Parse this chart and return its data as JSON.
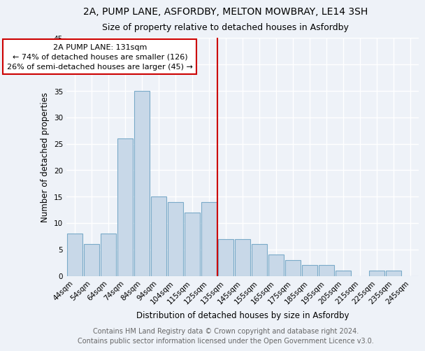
{
  "title1": "2A, PUMP LANE, ASFORDBY, MELTON MOWBRAY, LE14 3SH",
  "title2": "Size of property relative to detached houses in Asfordby",
  "xlabel": "Distribution of detached houses by size in Asfordby",
  "ylabel": "Number of detached properties",
  "footnote": "Contains HM Land Registry data © Crown copyright and database right 2024.\nContains public sector information licensed under the Open Government Licence v3.0.",
  "bin_labels": [
    "44sqm",
    "54sqm",
    "64sqm",
    "74sqm",
    "84sqm",
    "94sqm",
    "104sqm",
    "115sqm",
    "125sqm",
    "135sqm",
    "145sqm",
    "155sqm",
    "165sqm",
    "175sqm",
    "185sqm",
    "195sqm",
    "205sqm",
    "215sqm",
    "225sqm",
    "235sqm",
    "245sqm"
  ],
  "bar_heights": [
    8,
    6,
    8,
    26,
    35,
    15,
    14,
    12,
    14,
    7,
    7,
    6,
    4,
    3,
    2,
    2,
    1,
    0,
    1,
    1,
    0
  ],
  "bar_color": "#c8d8e8",
  "bar_edge_color": "#7aaac8",
  "annotation_text": "  2A PUMP LANE: 131sqm  \n← 74% of detached houses are smaller (126)\n26% of semi-detached houses are larger (45) →",
  "annotation_box_color": "#ffffff",
  "annotation_box_edge_color": "#cc0000",
  "vline_color": "#cc0000",
  "ylim": [
    0,
    45
  ],
  "yticks": [
    0,
    5,
    10,
    15,
    20,
    25,
    30,
    35,
    40,
    45
  ],
  "bg_color": "#eef2f8",
  "grid_color": "#ffffff",
  "title1_fontsize": 10,
  "title2_fontsize": 9,
  "xlabel_fontsize": 8.5,
  "ylabel_fontsize": 8.5,
  "tick_fontsize": 7.5,
  "footnote_fontsize": 7,
  "annotation_fontsize": 8
}
